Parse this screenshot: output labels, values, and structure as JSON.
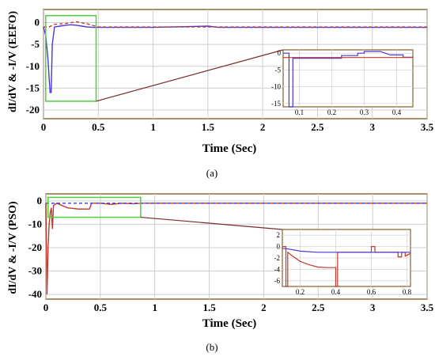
{
  "chart_data": [
    {
      "id": "a",
      "type": "line",
      "caption": "(a)",
      "xlabel": "Time (Sec)",
      "ylabel": "dI/dV & -I/V (EEFO)",
      "xlim": [
        0,
        3.5
      ],
      "ylim": [
        -22,
        3
      ],
      "xticks": [
        "0",
        "0.5",
        "1",
        "1.5",
        "2",
        "2.5",
        "3",
        "3.5"
      ],
      "yticks": [
        "0",
        "-5",
        "-10",
        "-15",
        "-20"
      ],
      "grid": true,
      "series": [
        {
          "color": "#4a37d6",
          "x": [
            0,
            0.02,
            0.04,
            0.05,
            0.06,
            0.07,
            0.08,
            0.1,
            0.15,
            0.2,
            0.25,
            0.3,
            0.35,
            0.4,
            0.45,
            0.6,
            1.0,
            1.5,
            1.6,
            2.0,
            2.5,
            3.0,
            3.5
          ],
          "y": [
            -1,
            -3,
            -8,
            -12,
            -16,
            -16,
            -5,
            -1,
            -0.8,
            -0.6,
            -0.5,
            -0.6,
            -0.8,
            -1,
            -1.1,
            -1.1,
            -1.1,
            -0.8,
            -1.1,
            -1.1,
            -1.1,
            -1.1,
            -1.1
          ]
        },
        {
          "color": "#c0392b",
          "style": "dashed",
          "x": [
            0,
            0.05,
            0.1,
            0.2,
            0.3,
            0.4,
            0.5,
            1.0,
            1.5,
            2.0,
            2.5,
            3.0,
            3.5
          ],
          "y": [
            -1,
            -1,
            -0.4,
            -0.2,
            0.2,
            -0.3,
            -1,
            -1,
            -1,
            -1,
            -1,
            -1,
            -1
          ]
        }
      ],
      "zoom_box": {
        "x": [
          0.02,
          0.48
        ],
        "y": [
          -18,
          1.6
        ]
      },
      "inset": {
        "xlim": [
          0.05,
          0.45
        ],
        "ylim": [
          -16,
          1
        ],
        "xticks": [
          "0.1",
          "0.2",
          "0.3",
          "0.4"
        ],
        "yticks": [
          "0",
          "-5",
          "-10",
          "-15"
        ],
        "series": [
          {
            "color": "#4a37d6",
            "x": [
              0.05,
              0.068,
              0.068,
              0.08,
              0.08,
              0.1,
              0.15,
              0.23,
              0.23,
              0.28,
              0.28,
              0.3,
              0.3,
              0.35,
              0.38,
              0.42,
              0.42,
              0.45
            ],
            "y": [
              0,
              0,
              -16,
              -16,
              -1.5,
              -1.5,
              -1.5,
              -1.5,
              -0.7,
              -0.7,
              0,
              0,
              0.5,
              0.5,
              -0.5,
              -0.5,
              -1.2,
              -1.2
            ]
          },
          {
            "color": "#c0392b",
            "x": [
              0.05,
              0.45
            ],
            "y": [
              -1.3,
              -1.3
            ]
          }
        ]
      }
    },
    {
      "id": "b",
      "type": "line",
      "caption": "(b)",
      "xlabel": "Time (Sec)",
      "ylabel": "dI/dV & -I/V (PSO)",
      "xlim": [
        0,
        3.5
      ],
      "ylim": [
        -42,
        3
      ],
      "xticks": [
        "0",
        "0.5",
        "1",
        "1.5",
        "2",
        "2.5",
        "3",
        "3.5"
      ],
      "yticks": [
        "0",
        "-10",
        "-20",
        "-30",
        "-40"
      ],
      "grid": true,
      "series": [
        {
          "color": "#c0392b",
          "x": [
            0,
            0.01,
            0.02,
            0.03,
            0.04,
            0.05,
            0.06,
            0.07,
            0.1,
            0.2,
            0.3,
            0.4,
            0.42,
            0.5,
            0.6,
            0.7,
            0.8,
            0.9,
            1.0,
            2.0,
            3.0,
            3.5
          ],
          "y": [
            -1,
            -40,
            -20,
            -10,
            -5,
            -3,
            -12,
            -2,
            -1,
            -3,
            -3.5,
            -3.5,
            -1,
            -1,
            -1.5,
            -1,
            -1.2,
            -1,
            -1,
            -1,
            -1,
            -1
          ]
        },
        {
          "color": "#4a37d6",
          "style": "dashed",
          "x": [
            0,
            0.1,
            0.5,
            1.0,
            1.5,
            2.0,
            2.5,
            3.0,
            3.5
          ],
          "y": [
            -1,
            -1,
            -1,
            -1,
            -1,
            -1,
            -1,
            -1,
            -1
          ]
        }
      ],
      "zoom_box": {
        "x": [
          0.02,
          0.87
        ],
        "y": [
          -7,
          1.5
        ]
      },
      "inset": {
        "xlim": [
          0.1,
          0.82
        ],
        "ylim": [
          -7,
          3
        ],
        "xticks": [
          "0.2",
          "0.4",
          "0.6",
          "0.8"
        ],
        "yticks": [
          "2",
          "0",
          "-2",
          "-4",
          "-6"
        ],
        "series": [
          {
            "color": "#c0392b",
            "x": [
              0.1,
              0.12,
              0.12,
              0.13,
              0.13,
              0.15,
              0.2,
              0.25,
              0.3,
              0.35,
              0.4,
              0.4,
              0.41,
              0.41,
              0.6,
              0.6,
              0.62,
              0.62,
              0.75,
              0.75,
              0.77,
              0.77,
              0.79,
              0.79,
              0.82
            ],
            "y": [
              0,
              0,
              -7,
              -7,
              -1,
              -1.5,
              -2.6,
              -3.2,
              -3.6,
              -3.7,
              -3.7,
              -7,
              -7,
              -1,
              -1,
              0,
              0,
              -1,
              -1,
              -1.8,
              -1.8,
              -1,
              -1,
              -1.7,
              -1.2
            ]
          },
          {
            "color": "#4a37d6",
            "x": [
              0.1,
              0.15,
              0.2,
              0.3,
              0.4,
              0.6,
              0.82
            ],
            "y": [
              -0.3,
              -0.5,
              -0.8,
              -1,
              -1,
              -1,
              -1
            ]
          }
        ]
      }
    }
  ]
}
